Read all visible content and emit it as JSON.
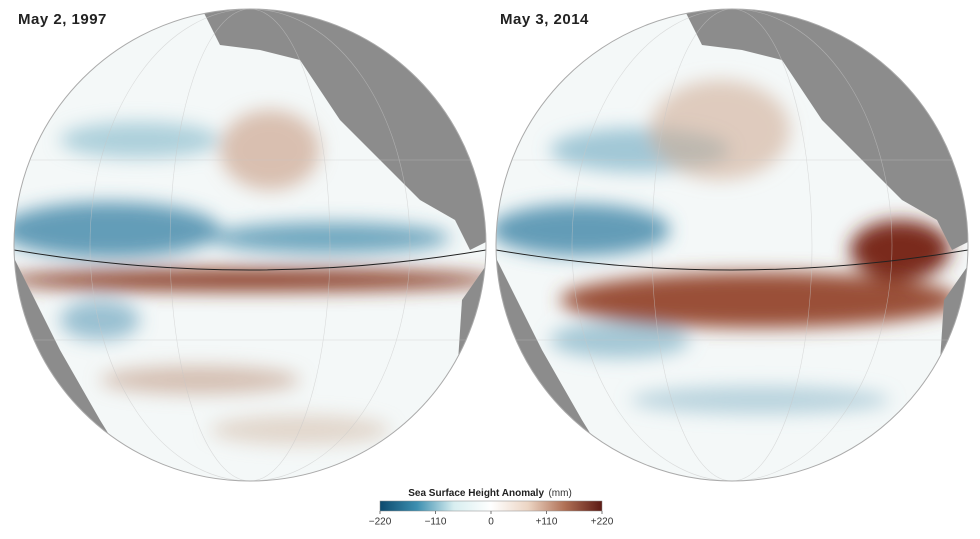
{
  "panels": [
    {
      "title": "May 2, 1997"
    },
    {
      "title": "May 3, 2014"
    }
  ],
  "legend": {
    "title": "Sea Surface Height Anomaly",
    "unit": "(mm)",
    "range": [
      -220,
      220
    ],
    "colors": [
      "#0d4a6e",
      "#3d8fb0",
      "#d8eef0",
      "#ffffff",
      "#ecd5c4",
      "#b07055",
      "#5c1a14"
    ],
    "ticks": [
      {
        "value": -220,
        "label": "−220"
      },
      {
        "value": -110,
        "label": "−110"
      },
      0,
      {
        "value": 110,
        "label": "+110"
      },
      {
        "value": 220,
        "label": "+220"
      }
    ]
  }
}
